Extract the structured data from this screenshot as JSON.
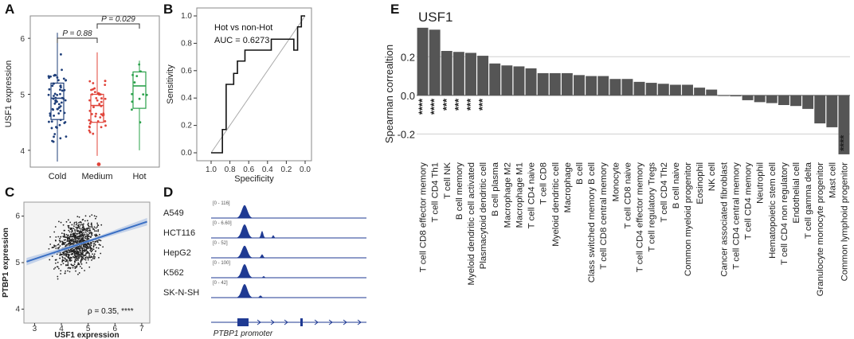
{
  "panels": {
    "A": "A",
    "B": "B",
    "C": "C",
    "D": "D",
    "E": "E"
  },
  "colors": {
    "cold": "#1f3f7a",
    "medium": "#e0443a",
    "hot": "#2aa04a",
    "bar": "#555555",
    "roc": "#111111",
    "blue": "#1f3a93",
    "regline": "#3a6fc4"
  },
  "chart_data": [
    {
      "type": "box",
      "id": "A",
      "ylabel": "USF1 expression",
      "ylim": [
        3.7,
        6.4
      ],
      "yticks": [
        4,
        5,
        6
      ],
      "categories": [
        "Cold",
        "Medium",
        "Hot"
      ],
      "boxes": [
        {
          "name": "Cold",
          "q1": 4.55,
          "median": 4.93,
          "q3": 5.2,
          "wlow": 3.8,
          "whigh": 6.1
        },
        {
          "name": "Medium",
          "q1": 4.5,
          "median": 4.8,
          "q3": 5.0,
          "wlow": 3.9,
          "whigh": 5.75
        },
        {
          "name": "Hot",
          "q1": 4.75,
          "median": 5.15,
          "q3": 5.4,
          "wlow": 4.0,
          "whigh": 5.6
        }
      ],
      "comparisons": [
        {
          "label": "P = 0.88",
          "from": "Cold",
          "to": "Medium"
        },
        {
          "label": "P = 0.029",
          "from": "Medium",
          "to": "Hot"
        }
      ]
    },
    {
      "type": "line",
      "id": "B",
      "title": "Hot vs non-Hot",
      "annotation": "AUC = 0.6273",
      "xlabel": "Specificity",
      "ylabel": "Sensitivity",
      "xlim": [
        1.0,
        0.0
      ],
      "ylim": [
        0.0,
        1.0
      ],
      "xticks": [
        "1.0",
        "0.8",
        "0.6",
        "0.4",
        "0.2",
        "0.0"
      ],
      "yticks": [
        "0.0",
        "0.2",
        "0.4",
        "0.6",
        "0.8",
        "1.0"
      ],
      "roc": [
        [
          1.0,
          0.0
        ],
        [
          0.88,
          0.0
        ],
        [
          0.88,
          0.17
        ],
        [
          0.84,
          0.17
        ],
        [
          0.84,
          0.5
        ],
        [
          0.76,
          0.5
        ],
        [
          0.76,
          0.58
        ],
        [
          0.72,
          0.58
        ],
        [
          0.72,
          0.67
        ],
        [
          0.64,
          0.67
        ],
        [
          0.64,
          0.75
        ],
        [
          0.36,
          0.75
        ],
        [
          0.36,
          0.83
        ],
        [
          0.12,
          0.83
        ],
        [
          0.12,
          0.75
        ],
        [
          0.08,
          0.75
        ],
        [
          0.08,
          0.92
        ],
        [
          0.04,
          0.92
        ],
        [
          0.04,
          1.0
        ],
        [
          0.0,
          1.0
        ]
      ]
    },
    {
      "type": "scatter",
      "id": "C",
      "xlabel": "USF1 expression",
      "ylabel": "PTBP1 expression",
      "xlim": [
        2.6,
        7.3
      ],
      "ylim": [
        3.7,
        6.3
      ],
      "xticks": [
        3,
        4,
        5,
        6,
        7
      ],
      "yticks": [
        4,
        5,
        6
      ],
      "fit": {
        "x0": 2.7,
        "y0": 5.02,
        "x1": 7.2,
        "y1": 5.88
      },
      "annotation": "ρ = 0.35, ****"
    },
    {
      "type": "track",
      "id": "D",
      "tracks": [
        {
          "name": "A549",
          "range": "[0 - 116]"
        },
        {
          "name": "HCT116",
          "range": "[0 - 6.60]"
        },
        {
          "name": "HepG2",
          "range": "[0 - 52]"
        },
        {
          "name": "K562",
          "range": "[0 - 100]"
        },
        {
          "name": "SK-N-SH",
          "range": "[0 - 42]"
        }
      ],
      "xlabel": "PTBP1 promoter"
    },
    {
      "type": "bar",
      "id": "E",
      "title": "USF1",
      "ylabel": "Spearman correaltion",
      "ylim": [
        -0.33,
        0.37
      ],
      "yticks": [
        "0.2",
        "0.0",
        "-0.2"
      ],
      "categories": [
        "T cell CD8 effector memory",
        "T cell CD4 Th1",
        "T cell NK",
        "B cell memory",
        "Myeloid dendritic cell activated",
        "Plasmacytoid dendritic cell",
        "B cell plasma",
        "Macrophage M2",
        "Macrophage M1",
        "T cell CD4 naive",
        "T cell CD8",
        "Myeloid dendritic cell",
        "Macrophage",
        "B cell",
        "Class switched memory B cell",
        "T cell CD8 central memory",
        "Monocyte",
        "T cell CD8 naive",
        "T cell CD4 effector memory",
        "T cell regulatory Tregs",
        "T cell CD4 Th2",
        "B cell naive",
        "Common myeloid progenitor",
        "Eosinophil",
        "NK cell",
        "Cancer associated fibroblast",
        "T cell CD4 central memory",
        "T cell CD4 memory",
        "Neutrophil",
        "Hematopoietic stem cell",
        "T cell CD4  non regulatory",
        "Endothelial cell",
        "T cell gamma delta",
        "Granulocyte monocyte progenitor",
        "Mast cell",
        "Common lymphoid progenitor"
      ],
      "values": [
        0.35,
        0.34,
        0.23,
        0.225,
        0.22,
        0.205,
        0.165,
        0.155,
        0.15,
        0.14,
        0.115,
        0.115,
        0.115,
        0.105,
        0.1,
        0.1,
        0.085,
        0.085,
        0.07,
        0.065,
        0.06,
        0.055,
        0.055,
        0.04,
        0.03,
        0.0,
        -0.005,
        -0.025,
        -0.035,
        -0.04,
        -0.05,
        -0.055,
        -0.07,
        -0.145,
        -0.165,
        -0.305
      ],
      "significance": [
        "****",
        "****",
        "***",
        "***",
        "***",
        "***",
        "",
        "",
        "",
        "",
        "",
        "",
        "",
        "",
        "",
        "",
        "",
        "",
        "",
        "",
        "",
        "",
        "",
        "",
        "",
        "",
        "",
        "",
        "",
        "",
        "",
        "",
        "",
        "",
        "",
        "****"
      ]
    }
  ]
}
